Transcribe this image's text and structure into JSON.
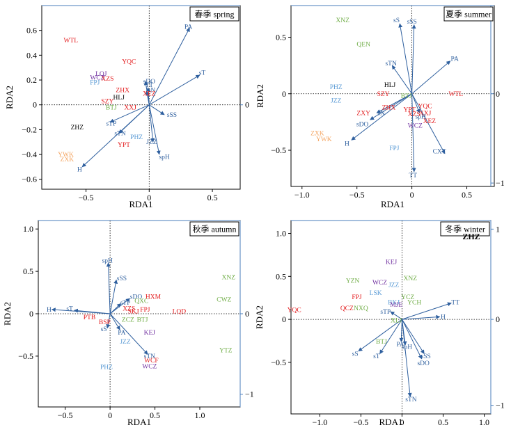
{
  "chart_data": [
    {
      "type": "scatter",
      "title": "春季 spring",
      "xlabel": "RDA1",
      "ylabel": "RDA2",
      "xlim": [
        -0.85,
        0.72
      ],
      "ylim": [
        -0.68,
        0.8
      ],
      "xticks": [
        {
          "v": -0.5,
          "label": "−0.5"
        },
        {
          "v": 0,
          "label": "0"
        },
        {
          "v": 0.5,
          "label": "0.5"
        }
      ],
      "yticks": [
        {
          "v": -0.6,
          "label": "−0.6"
        },
        {
          "v": -0.4,
          "label": "−0.4"
        },
        {
          "v": -0.2,
          "label": "−0.2"
        },
        {
          "v": 0,
          "label": "0"
        },
        {
          "v": 0.2,
          "label": "0.2"
        },
        {
          "v": 0.4,
          "label": "0.4"
        },
        {
          "v": 0.6,
          "label": "0.6"
        }
      ],
      "right_ticks": [
        {
          "v": 0,
          "label": "0"
        }
      ],
      "arrows": [
        {
          "label": "PA",
          "x": 0.32,
          "y": 0.62,
          "lx": 0.31,
          "ly": 0.63
        },
        {
          "label": "sT",
          "x": 0.4,
          "y": 0.24,
          "lx": 0.42,
          "ly": 0.26
        },
        {
          "label": "sDO",
          "x": -0.03,
          "y": 0.19,
          "lx": 0.0,
          "ly": 0.19
        },
        {
          "label": "TT",
          "x": -0.01,
          "y": 0.14,
          "lx": 0.0,
          "ly": 0.16
        },
        {
          "label": "sN",
          "x": -0.02,
          "y": 0.11,
          "lx": 0.02,
          "ly": 0.12
        },
        {
          "label": "sSS",
          "x": 0.12,
          "y": -0.08,
          "lx": 0.18,
          "ly": -0.08
        },
        {
          "label": "sTP",
          "x": -0.31,
          "y": -0.14,
          "lx": -0.3,
          "ly": -0.15
        },
        {
          "label": "sTN",
          "x": -0.24,
          "y": -0.23,
          "lx": -0.23,
          "ly": -0.23
        },
        {
          "label": "JZZ",
          "x": 0.03,
          "y": -0.3,
          "lx": 0.02,
          "ly": -0.3
        },
        {
          "label": "spH",
          "x": 0.08,
          "y": -0.4,
          "lx": 0.12,
          "ly": -0.42
        },
        {
          "label": "H",
          "x": -0.53,
          "y": -0.5,
          "lx": -0.55,
          "ly": -0.52
        }
      ],
      "points": [
        {
          "label": "WTL",
          "x": -0.62,
          "y": 0.52,
          "color": "#e31a1c"
        },
        {
          "label": "YQC",
          "x": -0.16,
          "y": 0.35,
          "color": "#e31a1c"
        },
        {
          "label": "LQJ",
          "x": -0.38,
          "y": 0.25,
          "color": "#7030a0"
        },
        {
          "label": "WCZ",
          "x": -0.41,
          "y": 0.22,
          "color": "#7030a0"
        },
        {
          "label": "XZS",
          "x": -0.33,
          "y": 0.21,
          "color": "#e31a1c"
        },
        {
          "label": "FPJ",
          "x": -0.43,
          "y": 0.18,
          "color": "#5b9bd5"
        },
        {
          "label": "ZHX",
          "x": -0.21,
          "y": 0.12,
          "color": "#e31a1c"
        },
        {
          "label": "XEZ",
          "x": 0.0,
          "y": 0.09,
          "color": "#e31a1c"
        },
        {
          "label": "HLJ",
          "x": -0.24,
          "y": 0.06,
          "color": "#000000"
        },
        {
          "label": "SZY",
          "x": -0.33,
          "y": 0.03,
          "color": "#e31a1c"
        },
        {
          "label": "BTJ",
          "x": -0.3,
          "y": -0.02,
          "color": "#70ad47"
        },
        {
          "label": "XXJ",
          "x": -0.15,
          "y": -0.02,
          "color": "#e31a1c"
        },
        {
          "label": "ZHZ",
          "x": -0.57,
          "y": -0.18,
          "color": "#000000"
        },
        {
          "label": "PHZ",
          "x": -0.1,
          "y": -0.26,
          "color": "#5b9bd5"
        },
        {
          "label": "YPT",
          "x": -0.2,
          "y": -0.32,
          "color": "#e31a1c"
        },
        {
          "label": "YWK",
          "x": -0.66,
          "y": -0.4,
          "color": "#f4a460"
        },
        {
          "label": "ZXK",
          "x": -0.65,
          "y": -0.44,
          "color": "#f4a460"
        }
      ]
    },
    {
      "type": "scatter",
      "title": "夏季 summer",
      "xlabel": "RDA1",
      "ylabel": "RDA2",
      "xlim": [
        -1.1,
        0.75
      ],
      "ylim": [
        -0.82,
        0.78
      ],
      "xticks": [
        {
          "v": -1.0,
          "label": "−1.0"
        },
        {
          "v": -0.5,
          "label": "−0.5"
        },
        {
          "v": 0,
          "label": "0"
        },
        {
          "v": 0.5,
          "label": "0.5"
        }
      ],
      "yticks": [
        {
          "v": -0.5,
          "label": "−0.5"
        },
        {
          "v": 0,
          "label": "0"
        },
        {
          "v": 0.5,
          "label": "0.5"
        }
      ],
      "right_ticks": [
        {
          "v": 0,
          "label": "0"
        },
        {
          "v": -0.79,
          "label": "−1"
        }
      ],
      "arrows": [
        {
          "label": "sS",
          "x": -0.11,
          "y": 0.62,
          "lx": -0.14,
          "ly": 0.65
        },
        {
          "label": "sSS",
          "x": 0.02,
          "y": 0.61,
          "lx": 0.0,
          "ly": 0.64
        },
        {
          "label": "PA",
          "x": 0.35,
          "y": 0.29,
          "lx": 0.39,
          "ly": 0.31
        },
        {
          "label": "sTN",
          "x": -0.18,
          "y": 0.25,
          "lx": -0.19,
          "ly": 0.27
        },
        {
          "label": "sDO",
          "x": -0.38,
          "y": -0.23,
          "lx": -0.45,
          "ly": -0.27
        },
        {
          "label": "H",
          "x": -0.55,
          "y": -0.41,
          "lx": -0.59,
          "ly": -0.44
        },
        {
          "label": "sN",
          "x": -0.32,
          "y": -0.17,
          "lx": -0.28,
          "ly": -0.17
        },
        {
          "label": "spH",
          "x": 0.07,
          "y": -0.17,
          "lx": 0.08,
          "ly": -0.2
        },
        {
          "label": "CXT",
          "x": 0.3,
          "y": -0.53,
          "lx": 0.25,
          "ly": -0.51
        },
        {
          "label": "TT",
          "x": 0.02,
          "y": -0.69,
          "lx": 0.01,
          "ly": -0.72
        }
      ],
      "points": [
        {
          "label": "XNZ",
          "x": -0.63,
          "y": 0.65,
          "color": "#70ad47"
        },
        {
          "label": "QEN",
          "x": -0.44,
          "y": 0.44,
          "color": "#70ad47"
        },
        {
          "label": "HLJ",
          "x": -0.2,
          "y": 0.08,
          "color": "#000000"
        },
        {
          "label": "PHZ",
          "x": -0.69,
          "y": 0.06,
          "color": "#5b9bd5"
        },
        {
          "label": "JZZ",
          "x": -0.69,
          "y": -0.06,
          "color": "#5b9bd5"
        },
        {
          "label": "SZY",
          "x": -0.26,
          "y": 0.0,
          "color": "#e31a1c"
        },
        {
          "label": "BTJ",
          "x": -0.05,
          "y": -0.02,
          "color": "#70ad47"
        },
        {
          "label": "ZHX",
          "x": -0.21,
          "y": -0.12,
          "color": "#e31a1c"
        },
        {
          "label": "YPT",
          "x": -0.02,
          "y": -0.14,
          "color": "#e31a1c"
        },
        {
          "label": "YQC",
          "x": 0.12,
          "y": -0.11,
          "color": "#e31a1c"
        },
        {
          "label": "XXJ",
          "x": 0.12,
          "y": -0.17,
          "color": "#e31a1c"
        },
        {
          "label": "XZS",
          "x": 0.02,
          "y": -0.18,
          "color": "#e31a1c"
        },
        {
          "label": "ZXY",
          "x": -0.44,
          "y": -0.17,
          "color": "#e31a1c"
        },
        {
          "label": "XEZ",
          "x": 0.16,
          "y": -0.24,
          "color": "#e31a1c"
        },
        {
          "label": "WCZ",
          "x": 0.03,
          "y": -0.28,
          "color": "#7030a0"
        },
        {
          "label": "WTL",
          "x": 0.4,
          "y": 0.0,
          "color": "#e31a1c"
        },
        {
          "label": "ZXK",
          "x": -0.86,
          "y": -0.35,
          "color": "#f4a460"
        },
        {
          "label": "YWK",
          "x": -0.8,
          "y": -0.4,
          "color": "#f4a460"
        },
        {
          "label": "FPJ",
          "x": -0.16,
          "y": -0.48,
          "color": "#5b9bd5"
        }
      ]
    },
    {
      "type": "scatter",
      "title": "秋季 autumn",
      "xlabel": "RDA1",
      "ylabel": "RDA2",
      "xlim": [
        -0.8,
        1.45
      ],
      "ylim": [
        -1.1,
        1.1
      ],
      "xticks": [
        {
          "v": -0.5,
          "label": "−0.5"
        },
        {
          "v": 0,
          "label": "0"
        },
        {
          "v": 0.5,
          "label": "0.5"
        },
        {
          "v": 1.0,
          "label": "1.0"
        }
      ],
      "yticks": [
        {
          "v": -0.5,
          "label": "−0.5"
        },
        {
          "v": 0,
          "label": "0"
        },
        {
          "v": 0.5,
          "label": "0.5"
        },
        {
          "v": 1.0,
          "label": "1.0"
        }
      ],
      "right_ticks": [
        {
          "v": 0,
          "label": "0"
        },
        {
          "v": -0.95,
          "label": "−1"
        }
      ],
      "arrows": [
        {
          "label": "spH",
          "x": -0.02,
          "y": 0.6,
          "lx": -0.03,
          "ly": 0.63
        },
        {
          "label": "sSS",
          "x": 0.07,
          "y": 0.4,
          "lx": 0.13,
          "ly": 0.42
        },
        {
          "label": "H",
          "x": -0.65,
          "y": 0.05,
          "lx": -0.68,
          "ly": 0.05
        },
        {
          "label": "sT",
          "x": -0.4,
          "y": 0.04,
          "lx": -0.45,
          "ly": 0.06
        },
        {
          "label": "PA",
          "x": 0.11,
          "y": -0.19,
          "lx": 0.13,
          "ly": -0.22
        },
        {
          "label": "sS",
          "x": -0.03,
          "y": -0.17,
          "lx": -0.07,
          "ly": -0.18
        },
        {
          "label": "sTN",
          "x": 0.42,
          "y": -0.48,
          "lx": 0.44,
          "ly": -0.5
        },
        {
          "label": "sDO",
          "x": 0.22,
          "y": 0.18,
          "lx": 0.29,
          "ly": 0.2
        },
        {
          "label": "sTP",
          "x": 0.12,
          "y": 0.12,
          "lx": 0.17,
          "ly": 0.13
        }
      ],
      "points": [
        {
          "label": "XNZ",
          "x": 1.32,
          "y": 0.43,
          "color": "#70ad47"
        },
        {
          "label": "CWZ",
          "x": 1.27,
          "y": 0.17,
          "color": "#70ad47"
        },
        {
          "label": "YTZ",
          "x": 1.29,
          "y": -0.43,
          "color": "#70ad47"
        },
        {
          "label": "LQD",
          "x": 0.77,
          "y": 0.03,
          "color": "#e31a1c"
        },
        {
          "label": "HXM",
          "x": 0.48,
          "y": 0.2,
          "color": "#e31a1c"
        },
        {
          "label": "QXC",
          "x": 0.35,
          "y": 0.15,
          "color": "#70ad47"
        },
        {
          "label": "FPJ",
          "x": 0.39,
          "y": 0.05,
          "color": "#e31a1c"
        },
        {
          "label": "XZS",
          "x": 0.21,
          "y": 0.06,
          "color": "#e31a1c"
        },
        {
          "label": "SKJ",
          "x": 0.26,
          "y": 0.03,
          "color": "#e31a1c"
        },
        {
          "label": "ZCZ",
          "x": 0.2,
          "y": -0.07,
          "color": "#70ad47"
        },
        {
          "label": "BTJ",
          "x": 0.36,
          "y": -0.07,
          "color": "#70ad47"
        },
        {
          "label": "PTB",
          "x": -0.23,
          "y": -0.04,
          "color": "#e31a1c"
        },
        {
          "label": "BSP",
          "x": -0.06,
          "y": -0.1,
          "color": "#e31a1c"
        },
        {
          "label": "KEJ",
          "x": 0.44,
          "y": -0.22,
          "color": "#7030a0"
        },
        {
          "label": "JZZ",
          "x": 0.17,
          "y": -0.33,
          "color": "#5b9bd5"
        },
        {
          "label": "WCF",
          "x": 0.46,
          "y": -0.55,
          "color": "#e31a1c"
        },
        {
          "label": "WCZ",
          "x": 0.44,
          "y": -0.62,
          "color": "#7030a0"
        },
        {
          "label": "PHZ",
          "x": -0.04,
          "y": -0.63,
          "color": "#5b9bd5"
        }
      ]
    },
    {
      "type": "scatter",
      "title": "冬季 winter",
      "corner_label": "ZHZ",
      "xlabel": "RDA1",
      "ylabel": "RDA2",
      "xlim": [
        -1.35,
        1.08
      ],
      "ylim": [
        -1.1,
        1.15
      ],
      "xticks": [
        {
          "v": -1.0,
          "label": "−1.0"
        },
        {
          "v": -0.5,
          "label": "−0.5"
        },
        {
          "v": 0,
          "label": "0"
        },
        {
          "v": 0.5,
          "label": "0.5"
        },
        {
          "v": 1.0,
          "label": "1.0"
        }
      ],
      "yticks": [
        {
          "v": -0.5,
          "label": "−0.5"
        },
        {
          "v": 0,
          "label": "0"
        },
        {
          "v": 0.5,
          "label": "0.5"
        },
        {
          "v": 1.0,
          "label": "1.0"
        }
      ],
      "right_ticks": [
        {
          "v": 1.05,
          "label": "1"
        },
        {
          "v": 0,
          "label": "0"
        },
        {
          "v": -1.0,
          "label": "−1"
        }
      ],
      "arrows": [
        {
          "label": "TT",
          "x": 0.6,
          "y": 0.19,
          "lx": 0.65,
          "ly": 0.2
        },
        {
          "label": "H",
          "x": 0.46,
          "y": 0.03,
          "lx": 0.5,
          "ly": 0.03
        },
        {
          "label": "sTP",
          "x": -0.14,
          "y": 0.09,
          "lx": -0.2,
          "ly": 0.09
        },
        {
          "label": "sS",
          "x": -0.53,
          "y": -0.37,
          "lx": -0.57,
          "ly": -0.4
        },
        {
          "label": "sT",
          "x": -0.27,
          "y": -0.4,
          "lx": -0.31,
          "ly": -0.43
        },
        {
          "label": "PA",
          "x": -0.01,
          "y": -0.26,
          "lx": -0.02,
          "ly": -0.29
        },
        {
          "label": "spH",
          "x": 0.04,
          "y": -0.3,
          "lx": 0.06,
          "ly": -0.32
        },
        {
          "label": "sSS",
          "x": 0.27,
          "y": -0.4,
          "lx": 0.29,
          "ly": -0.43
        },
        {
          "label": "sDO",
          "x": 0.24,
          "y": -0.46,
          "lx": 0.26,
          "ly": -0.51
        },
        {
          "label": "sTN",
          "x": 0.1,
          "y": -0.9,
          "lx": 0.11,
          "ly": -0.93
        }
      ],
      "points": [
        {
          "label": "KEJ",
          "x": -0.13,
          "y": 0.67,
          "color": "#7030a0"
        },
        {
          "label": "XNZ",
          "x": 0.1,
          "y": 0.48,
          "color": "#70ad47"
        },
        {
          "label": "YZN",
          "x": -0.6,
          "y": 0.45,
          "color": "#70ad47"
        },
        {
          "label": "WCZ",
          "x": -0.27,
          "y": 0.43,
          "color": "#7030a0"
        },
        {
          "label": "JZZ",
          "x": -0.1,
          "y": 0.4,
          "color": "#5b9bd5"
        },
        {
          "label": "LSK",
          "x": -0.32,
          "y": 0.31,
          "color": "#5b9bd5"
        },
        {
          "label": "FPJ",
          "x": -0.55,
          "y": 0.26,
          "color": "#e31a1c"
        },
        {
          "label": "YCZ",
          "x": 0.07,
          "y": 0.26,
          "color": "#70ad47"
        },
        {
          "label": "YCH",
          "x": 0.15,
          "y": 0.2,
          "color": "#70ad47"
        },
        {
          "label": "BKJ",
          "x": -0.1,
          "y": 0.2,
          "color": "#5b9bd5"
        },
        {
          "label": "MJE",
          "x": -0.07,
          "y": 0.17,
          "color": "#7030a0"
        },
        {
          "label": "QCZ",
          "x": -0.67,
          "y": 0.13,
          "color": "#e31a1c"
        },
        {
          "label": "NXQ",
          "x": -0.5,
          "y": 0.13,
          "color": "#70ad47"
        },
        {
          "label": "YQC",
          "x": -1.31,
          "y": 0.11,
          "color": "#e31a1c"
        },
        {
          "label": "XLJ",
          "x": -0.07,
          "y": -0.01,
          "color": "#70ad47"
        },
        {
          "label": "BTJ",
          "x": -0.25,
          "y": -0.26,
          "color": "#70ad47"
        }
      ]
    }
  ]
}
